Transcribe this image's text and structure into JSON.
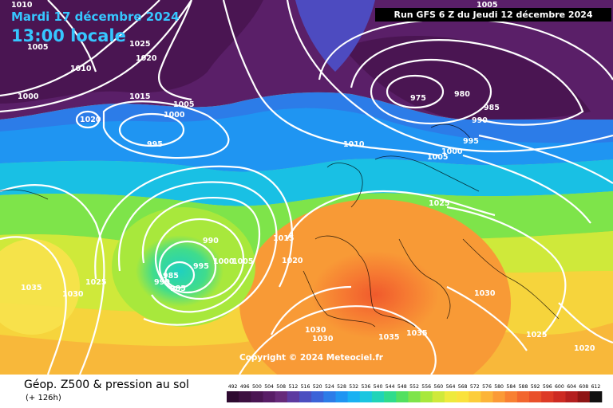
{
  "header": {
    "date": "Mardi 17 décembre 2024",
    "local_time": "13:00 locale",
    "run": "Run GFS 6 Z du Jeudi 12 décembre 2024"
  },
  "copyright": "Copyright © 2024 Meteociel.fr",
  "footer": {
    "title": "Géop. Z500 & pression au sol",
    "lead": "(+ 126h)"
  },
  "colorscale": {
    "labels": [
      "492",
      "496",
      "500",
      "504",
      "508",
      "512",
      "516",
      "520",
      "524",
      "528",
      "532",
      "536",
      "540",
      "544",
      "548",
      "552",
      "556",
      "560",
      "564",
      "568",
      "572",
      "576",
      "580",
      "584",
      "588",
      "592",
      "596",
      "600",
      "604",
      "608",
      "612"
    ],
    "colors": [
      "#2e0a30",
      "#3d1040",
      "#4a1552",
      "#581d66",
      "#672a7a",
      "#5d3aa0",
      "#4b4fc0",
      "#3b63d8",
      "#2c7ce8",
      "#1f95f2",
      "#19b1f2",
      "#1ac6e0",
      "#20d4b8",
      "#2fdc8c",
      "#52e060",
      "#7ee44a",
      "#a8e83c",
      "#cfe93a",
      "#eeea3c",
      "#fae23c",
      "#fccd3a",
      "#fcb438",
      "#fb9a36",
      "#f88032",
      "#f2662e",
      "#e9502a",
      "#dd3a26",
      "#cd2a22",
      "#b41e1e",
      "#8e1414",
      "#101010"
    ]
  },
  "isobar_labels": [
    "1010",
    "1005",
    "1010",
    "1000",
    "1025",
    "1020",
    "1015",
    "1005",
    "1000",
    "995",
    "1020",
    "975",
    "980",
    "985",
    "990",
    "995",
    "1005",
    "1000",
    "1005",
    "1010",
    "1005",
    "1025",
    "990",
    "995",
    "1000",
    "1005",
    "985",
    "990",
    "985",
    "1015",
    "1020",
    "1035",
    "1030",
    "1025",
    "1030",
    "1030",
    "1035",
    "1035",
    "1030",
    "1025",
    "1020"
  ]
}
